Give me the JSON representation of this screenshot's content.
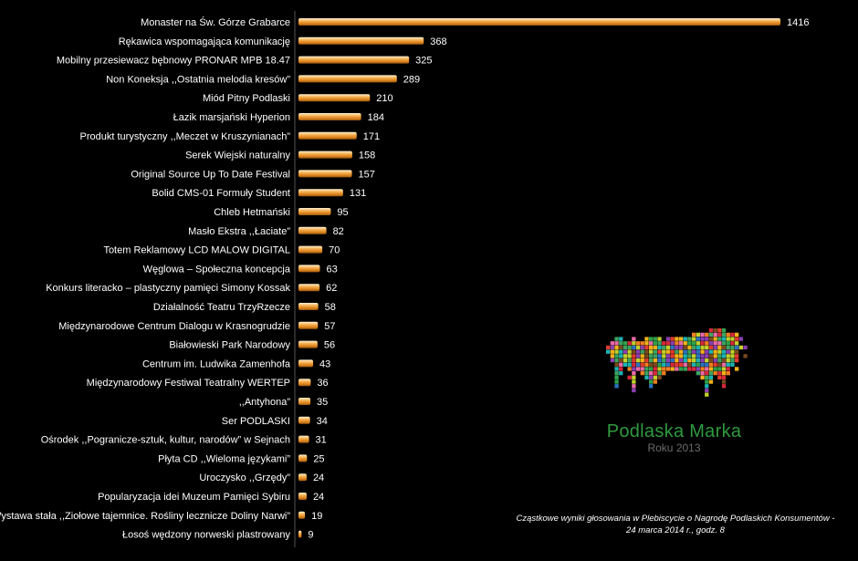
{
  "chart_data": {
    "type": "bar",
    "orientation": "horizontal",
    "categories": [
      "Monaster na Św. Górze Grabarce",
      "Rękawica wspomagająca komunikację",
      "Mobilny przesiewacz bębnowy PRONAR MPB 18.47",
      "Non Koneksja ,,Ostatnia melodia kresów”",
      "Miód Pitny Podlaski",
      "Łazik marsjański Hyperion",
      "Produkt turystyczny ,,Meczet w Kruszynianach”",
      "Serek Wiejski naturalny",
      "Original Source Up To Date Festival",
      "Bolid CMS-01 Formuły Student",
      "Chleb Hetmański",
      "Masło Ekstra ,,Łaciate”",
      "Totem Reklamowy LCD MALOW DIGITAL",
      "Węglowa – Społeczna koncepcja",
      "Konkurs literacko – plastyczny pamięci Simony Kossak",
      "Działalność Teatru TrzyRzecze",
      "Międzynarodowe Centrum Dialogu w Krasnogrudzie",
      "Białowieski Park Narodowy",
      "Centrum im. Ludwika Zamenhofa",
      "Międzynarodowy Festiwal Teatralny WERTEP",
      ",,Antyhona”",
      "Ser PODLASKI",
      "Ośrodek ,,Pogranicze-sztuk, kultur, narodów” w Sejnach",
      "Płyta CD ,,Wieloma językami”",
      "Uroczysko ,,Grzędy”",
      "Popularyzacja idei Muzeum Pamięci Sybiru",
      "Wystawa stała ,,Ziołowe tajemnice. Rośliny lecznicze Doliny Narwi”",
      "Łosoś wędzony norweski plastrowany"
    ],
    "values": [
      1416,
      368,
      325,
      289,
      210,
      184,
      171,
      158,
      157,
      131,
      95,
      82,
      70,
      63,
      62,
      58,
      57,
      56,
      43,
      36,
      35,
      34,
      31,
      25,
      24,
      24,
      19,
      9
    ],
    "xlim": [
      0,
      1416
    ],
    "grid": false,
    "legend": "none",
    "bar_color": "#e8922c",
    "bar_highlight": "#fff1cf",
    "background": "#000000",
    "text_color": "#ffffff"
  },
  "logo": {
    "icon": "bison-pixel-mosaic-icon",
    "title": "Podlaska Marka",
    "subtitle": "Roku 2013",
    "title_color": "#2f9a3f"
  },
  "footnote": {
    "line1": "Cząstkowe wyniki głosowania w Plebiscycie o Nagrodę Podlaskich Konsumentów -",
    "line2": "24 marca 2014 r., godz. 8"
  }
}
